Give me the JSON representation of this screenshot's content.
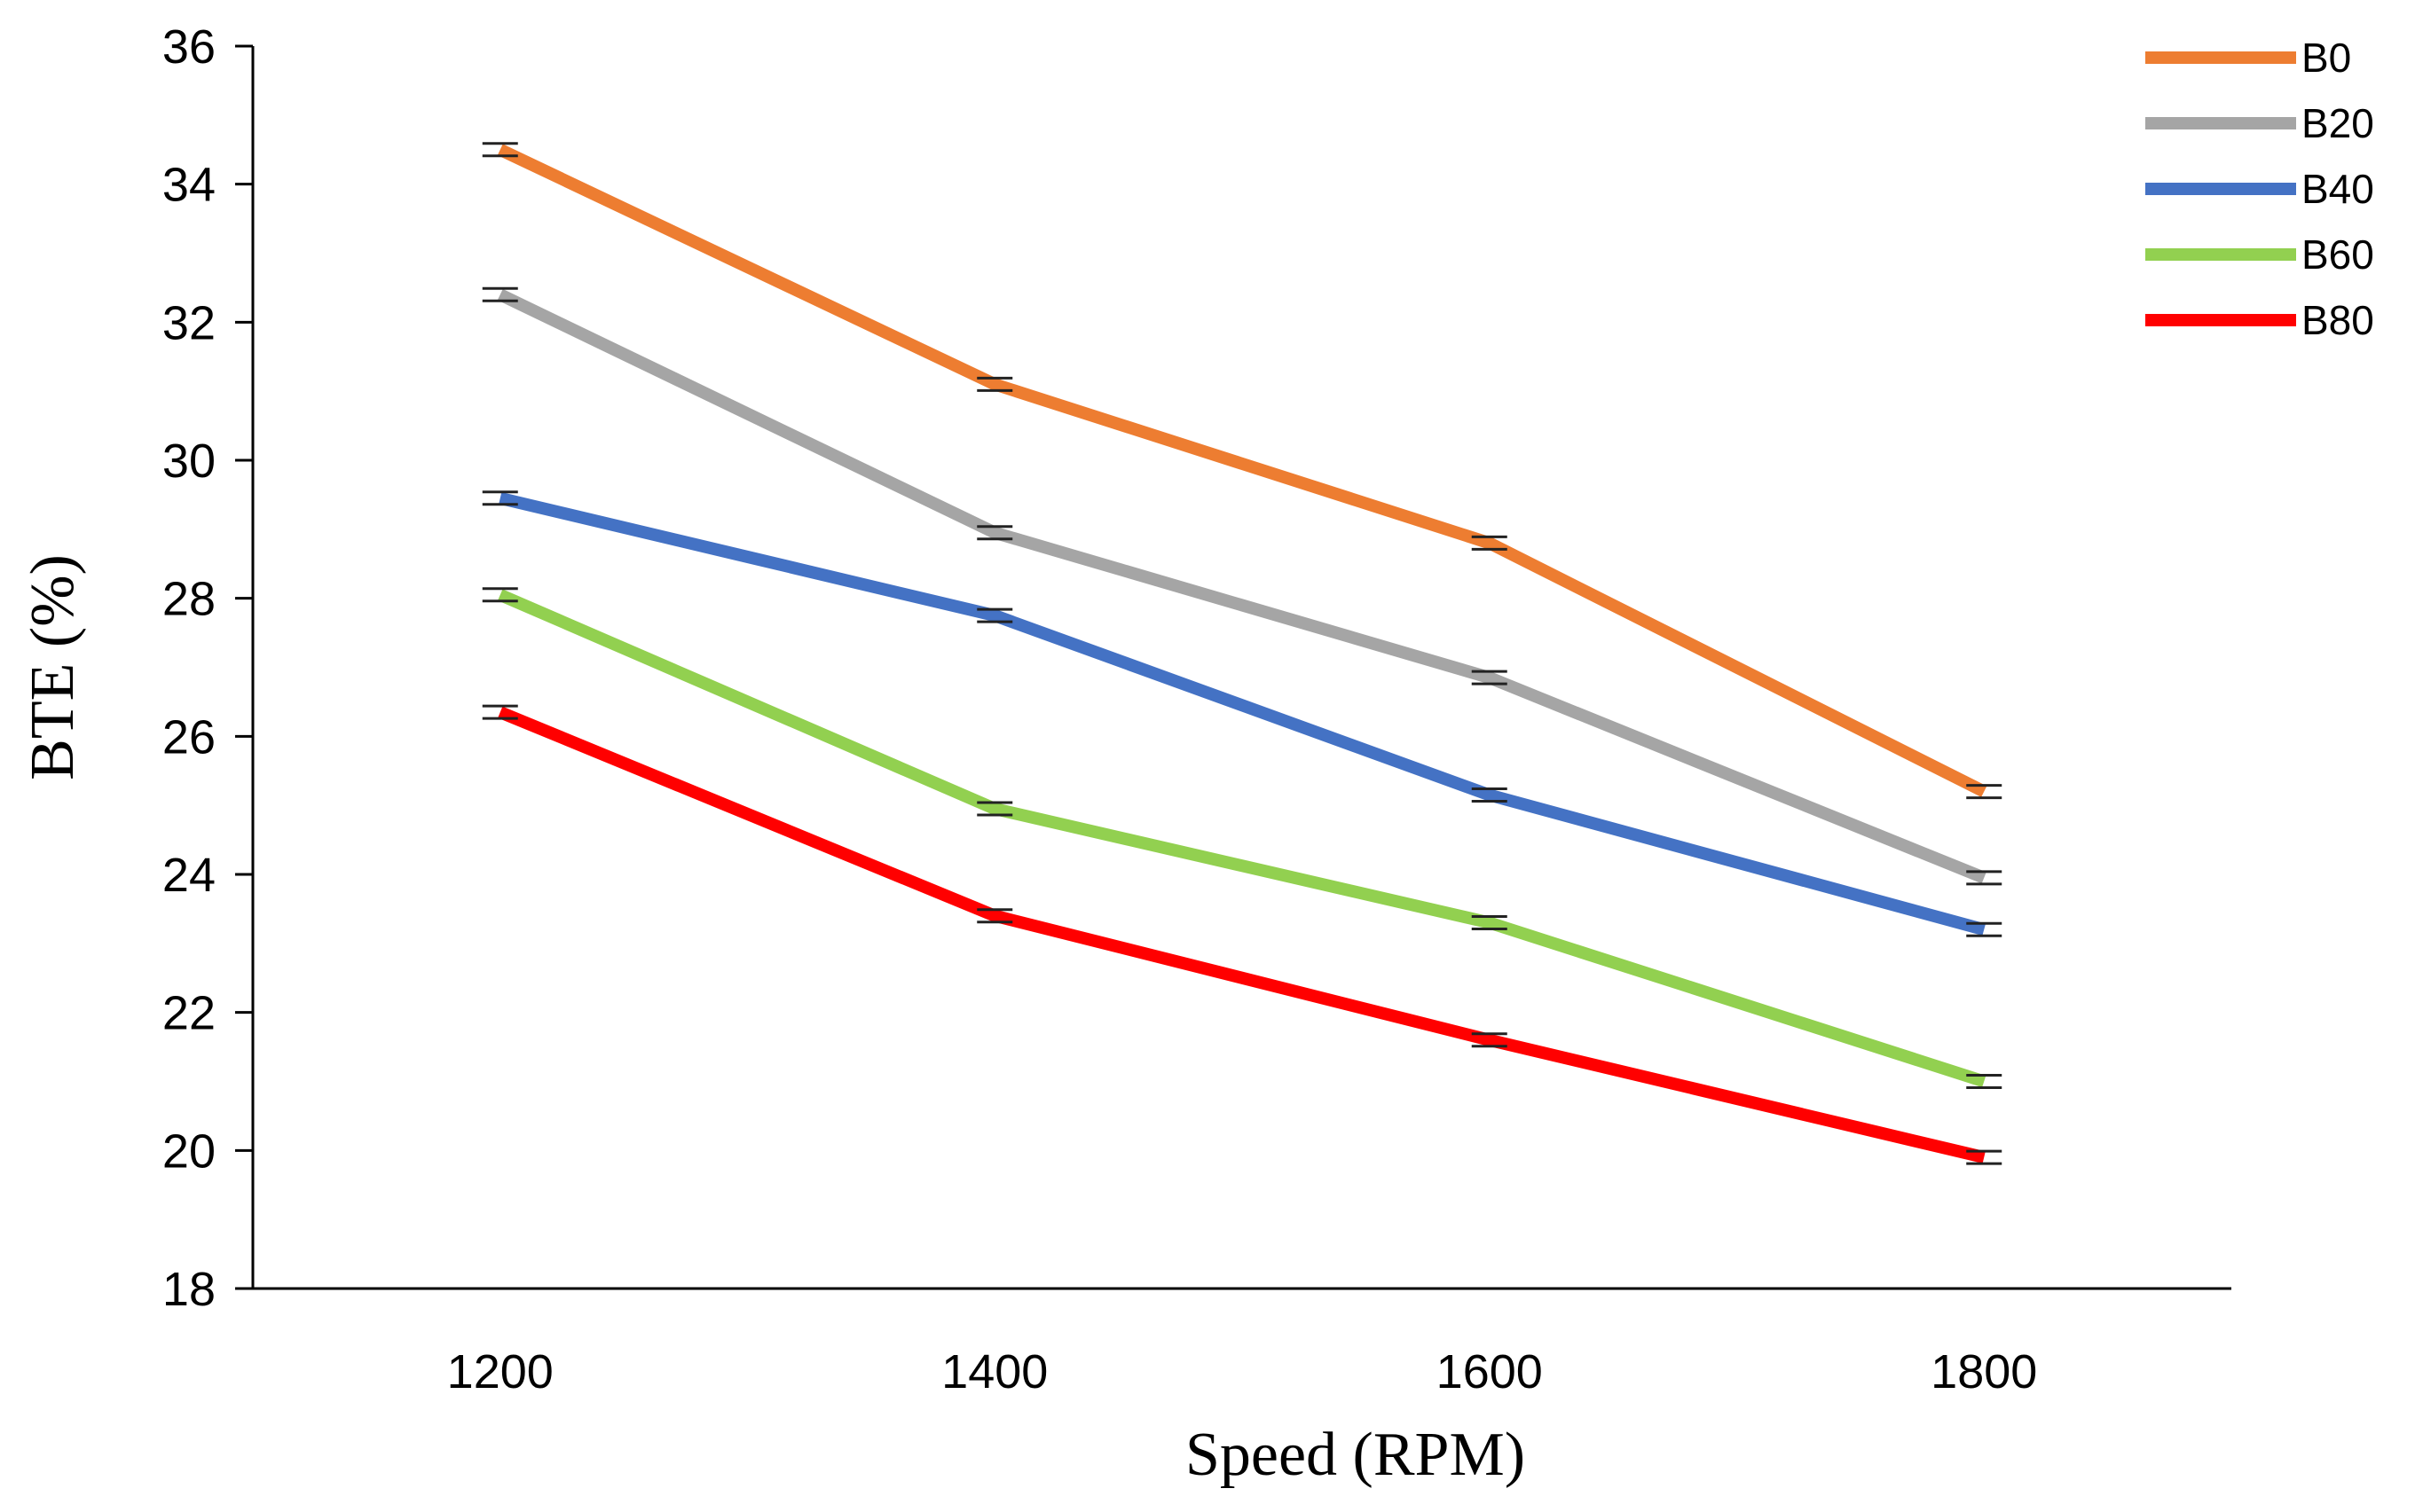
{
  "chart_data": {
    "type": "line",
    "title": "",
    "xlabel": "Speed (RPM)",
    "ylabel": "BTE (%)",
    "x": [
      1200,
      1400,
      1600,
      1800
    ],
    "x_tick_labels": [
      "1200",
      "1400",
      "1600",
      "1800"
    ],
    "ylim": [
      18,
      36
    ],
    "y_ticks": [
      18,
      20,
      22,
      24,
      26,
      28,
      30,
      32,
      34,
      36
    ],
    "y_tick_labels": [
      "18",
      "20",
      "22",
      "24",
      "26",
      "28",
      "30",
      "32",
      "34",
      "36"
    ],
    "grid": false,
    "legend_position": "top-right",
    "error_bars": true,
    "series": [
      {
        "name": "B0",
        "color": "#ED7D31",
        "values": [
          34.5,
          31.1,
          28.8,
          25.2
        ]
      },
      {
        "name": "B20",
        "color": "#A5A5A5",
        "values": [
          32.4,
          28.95,
          26.85,
          23.95
        ]
      },
      {
        "name": "B40",
        "color": "#4472C4",
        "values": [
          29.45,
          27.75,
          25.15,
          23.2
        ]
      },
      {
        "name": "B60",
        "color": "#92D050",
        "values": [
          28.05,
          24.95,
          23.3,
          21.0
        ]
      },
      {
        "name": "B80",
        "color": "#FF0000",
        "values": [
          26.35,
          23.4,
          21.6,
          19.9
        ]
      }
    ]
  }
}
